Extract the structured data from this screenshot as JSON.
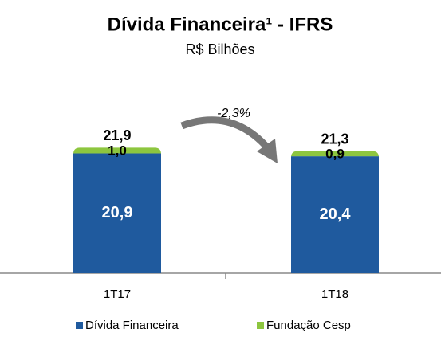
{
  "chart_data": {
    "type": "stacked_bar",
    "title": "Dívida Financeira¹ - IFRS",
    "subtitle": "R$ Bilhões",
    "categories": [
      "1T17",
      "1T18"
    ],
    "series": [
      {
        "name": "Dívida Financeira",
        "color": "#1f5a9e",
        "values": [
          20.9,
          20.4
        ],
        "value_labels": [
          "20,9",
          "20,4"
        ]
      },
      {
        "name": "Fundação Cesp",
        "color": "#8dc63f",
        "values": [
          1.0,
          0.9
        ],
        "value_labels": [
          "1,0",
          "0,9"
        ]
      }
    ],
    "totals": {
      "values": [
        21.9,
        21.3
      ],
      "value_labels": [
        "21,9",
        "21,3"
      ]
    },
    "annotation": "-2,3%",
    "legend": "bottom"
  }
}
